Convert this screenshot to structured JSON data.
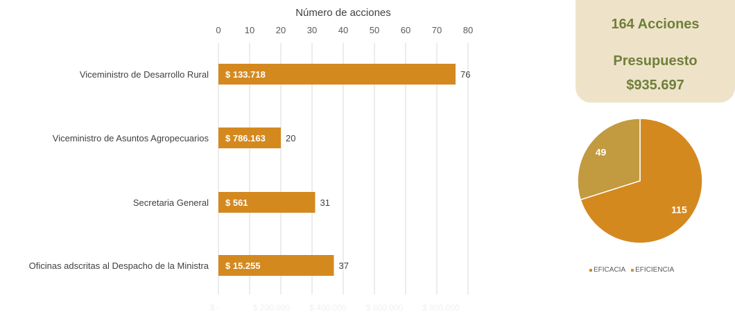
{
  "summary": {
    "actions": "164 Acciones",
    "budget_label": "Presupuesto",
    "budget_value": "$935.697"
  },
  "colors": {
    "bar": "#d4891f",
    "pie_eficacia": "#d4891f",
    "pie_eficiencia": "#c29a3f",
    "grid": "#d9d9d9",
    "secondary_tick": "#f0f0f0",
    "card_bg": "#eee3c8",
    "card_text": "#6f7f3a"
  },
  "chart_data": [
    {
      "type": "bar",
      "orientation": "horizontal",
      "categories": [
        "Viceministro de Desarrollo Rural",
        "Viceministro de Asuntos Agropecuarios",
        "Secretaria General",
        "Oficinas adscritas al Despacho de la Ministra"
      ],
      "values": [
        76,
        20,
        31,
        37
      ],
      "bar_labels": [
        "$ 133.718",
        "$ 786.163",
        "$ 561",
        "$ 15.255"
      ],
      "xlabel": "Número de acciones",
      "xlim": [
        0,
        80
      ],
      "xticks": [
        0,
        10,
        20,
        30,
        40,
        50,
        60,
        70,
        80
      ],
      "secondary_axis_ticks": [
        "$ -",
        "$ 200.000",
        "$ 400.000",
        "$ 600.000",
        "$ 800.000"
      ],
      "grid": true
    },
    {
      "type": "pie",
      "labels": [
        "EFICACIA",
        "EFICIENCIA"
      ],
      "values": [
        115,
        49
      ],
      "legend": "bottom"
    }
  ]
}
